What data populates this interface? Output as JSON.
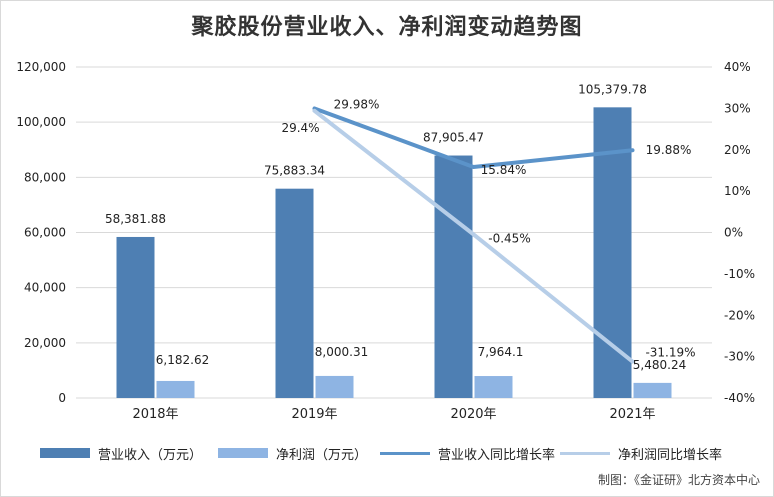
{
  "colors": {
    "revenue": "#4e7fb3",
    "profit": "#8eb4e3",
    "revenue_growth": "#5b93c9",
    "profit_growth": "#b7cee8",
    "grid": "#d9d9d9",
    "text": "#222222"
  },
  "chart_data": {
    "type": "bar",
    "title": "聚胶股份营业收入、净利润变动趋势图",
    "categories": [
      "2018年",
      "2019年",
      "2020年",
      "2021年"
    ],
    "series": [
      {
        "name": "营业收入（万元）",
        "kind": "bar",
        "axis": "left",
        "values": [
          58381.88,
          75883.34,
          87905.47,
          105379.78
        ],
        "labels": [
          "58,381.88",
          "75,883.34",
          "87,905.47",
          "105,379.78"
        ]
      },
      {
        "name": "净利润（万元）",
        "kind": "bar",
        "axis": "left",
        "values": [
          6182.62,
          8000.31,
          7964.1,
          5480.24
        ],
        "labels": [
          "6,182.62",
          "8,000.31",
          "7,964.1",
          "5,480.24"
        ]
      },
      {
        "name": "营业收入同比增长率",
        "kind": "line",
        "axis": "right",
        "values": [
          null,
          29.98,
          15.84,
          19.88
        ],
        "labels": [
          "",
          "29.98%",
          "15.84%",
          "19.88%"
        ]
      },
      {
        "name": "净利润同比增长率",
        "kind": "line",
        "axis": "right",
        "values": [
          null,
          29.4,
          -0.45,
          -31.19
        ],
        "labels": [
          "",
          "29.4%",
          "-0.45%",
          "-31.19%"
        ]
      }
    ],
    "y_left": {
      "min": 0,
      "max": 120000,
      "ticks": [
        "0",
        "20,000",
        "40,000",
        "60,000",
        "80,000",
        "100,000",
        "120,000"
      ]
    },
    "y_right": {
      "min": -40,
      "max": 40,
      "ticks": [
        "-40%",
        "-30%",
        "-20%",
        "-10%",
        "0%",
        "10%",
        "20%",
        "30%",
        "40%"
      ]
    },
    "grid": true,
    "legend_position": "bottom"
  },
  "source": "制图：《金证研》北方资本中心"
}
